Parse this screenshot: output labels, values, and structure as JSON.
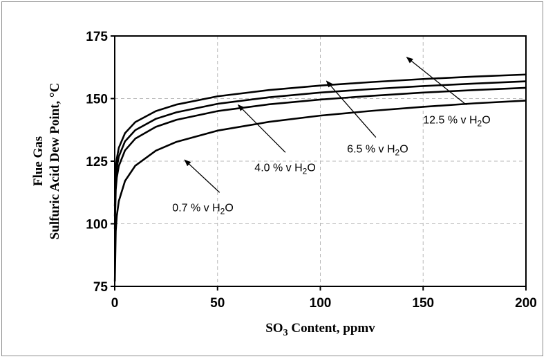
{
  "chart_data": {
    "type": "line",
    "title": "",
    "xlabel": {
      "pre": "SO",
      "sub": "3",
      "post": " Content, ppmv"
    },
    "ylabel": {
      "line1": "Flue Gas",
      "line2": "Sulfuric Acid Dew Point, °C"
    },
    "xlim": [
      0,
      200
    ],
    "ylim": [
      75,
      175
    ],
    "xticks": [
      0,
      50,
      100,
      150,
      200
    ],
    "yticks": [
      75,
      100,
      125,
      150,
      175
    ],
    "grid": true,
    "legend": "none",
    "line_color": "#000000",
    "grid_color": "#b8b8b8",
    "series": [
      {
        "x": [
          0.05,
          0.5,
          1,
          2,
          5,
          10,
          20,
          30,
          50,
          75,
          100,
          125,
          150,
          175,
          200
        ],
        "y": [
          77,
          97.1,
          103.1,
          109.1,
          117.1,
          123.2,
          129.2,
          132.7,
          137.2,
          140.7,
          143.2,
          145.1,
          146.7,
          148.1,
          149.2
        ]
      },
      {
        "x": [
          0.05,
          0.5,
          1,
          2,
          5,
          10,
          20,
          30,
          50,
          75,
          100,
          125,
          150,
          175,
          200
        ],
        "y": [
          98,
          113.6,
          118.4,
          123.1,
          129.3,
          134.0,
          138.7,
          141.5,
          145.0,
          147.7,
          149.6,
          151.1,
          152.4,
          153.4,
          154.3
        ]
      },
      {
        "x": [
          0.05,
          0.5,
          1,
          2,
          5,
          10,
          20,
          30,
          50,
          75,
          100,
          125,
          150,
          175,
          200
        ],
        "y": [
          103,
          117.9,
          122.4,
          126.9,
          132.9,
          137.4,
          141.9,
          144.5,
          147.9,
          150.5,
          152.4,
          153.8,
          155.0,
          156.0,
          156.9
        ]
      },
      {
        "x": [
          0.05,
          0.5,
          1,
          2,
          5,
          10,
          20,
          30,
          50,
          75,
          100,
          125,
          150,
          175,
          200
        ],
        "y": [
          107,
          121.6,
          126.0,
          130.4,
          136.2,
          140.6,
          145.0,
          147.6,
          150.9,
          153.4,
          155.2,
          156.6,
          157.8,
          158.8,
          159.6
        ]
      }
    ],
    "annotations": [
      {
        "pre": "0.7 % v H",
        "sub": "2",
        "post": "O",
        "text_at": [
          28,
          105
        ],
        "arrow_from": [
          51,
          112.5
        ],
        "arrow_to": [
          34,
          125.5
        ]
      },
      {
        "pre": "4.0 % v H",
        "sub": "2",
        "post": "O",
        "text_at": [
          68,
          121
        ],
        "arrow_from": [
          83,
          128.5
        ],
        "arrow_to": [
          60,
          147.5
        ]
      },
      {
        "pre": "6.5 % v H",
        "sub": "2",
        "post": "O",
        "text_at": [
          113,
          128.5
        ],
        "arrow_from": [
          127,
          134.5
        ],
        "arrow_to": [
          103,
          157
        ]
      },
      {
        "pre": "12.5 % v H",
        "sub": "2",
        "post": "O",
        "text_at": [
          150,
          140
        ],
        "arrow_from": [
          171,
          147.5
        ],
        "arrow_to": [
          142,
          166.5
        ]
      }
    ]
  }
}
